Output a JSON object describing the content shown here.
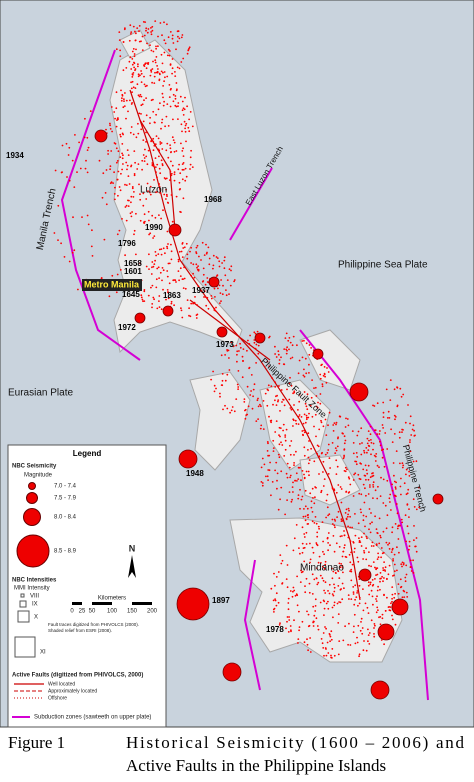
{
  "map": {
    "labels": {
      "luzon": "Luzon",
      "manila_trench": "Manila Trench",
      "east_luzon_trench": "East Luzon Trench",
      "philippine_sea_plate": "Philippine Sea Plate",
      "metro_manila": "Metro Manila",
      "eurasian_plate": "Eurasian Plate",
      "philippine_fault_zone": "Philippine Fault Zone",
      "philippine_trench": "Philippine Trench",
      "mindanao": "Mindanao"
    },
    "event_years": [
      "1934",
      "1968",
      "1990",
      "1796",
      "1658",
      "1601",
      "1645",
      "1863",
      "1937",
      "1972",
      "1973",
      "1948",
      "1897",
      "1978"
    ]
  },
  "legend": {
    "title": "Legend",
    "seismicity_title": "NBC Seismicity",
    "magnitude": "Magnitude",
    "magnitude_classes": [
      "7.0 - 7.4",
      "7.5 - 7.9",
      "8.0 - 8.4",
      "8.5 - 8.9"
    ],
    "north": "N",
    "intensities_title": "NBC Intensities",
    "mmi": "MMI Intensity",
    "intensity_classes": [
      "VIII",
      "IX",
      "X",
      "XI"
    ],
    "scale_title": "Kilometers",
    "scale_ticks": [
      "0",
      "25",
      "50",
      "100",
      "150",
      "200"
    ],
    "sources": [
      "Fault traces digitized from PHIVOLCS (2000).",
      "Shaded relief from ESRI (2008)."
    ],
    "faults_title": "Active Faults (digitized from PHIVOLCS, 2000)",
    "fault_types": [
      "Well located",
      "Approximately located",
      "Offshore"
    ],
    "subduction": "Subduction zones (sawteeth on upper plate)"
  },
  "caption": {
    "figure": "Figure 1",
    "line1": "Historical Seismicity (1600 – 2006) and",
    "line2": "Active Faults in the Philippine Islands"
  }
}
